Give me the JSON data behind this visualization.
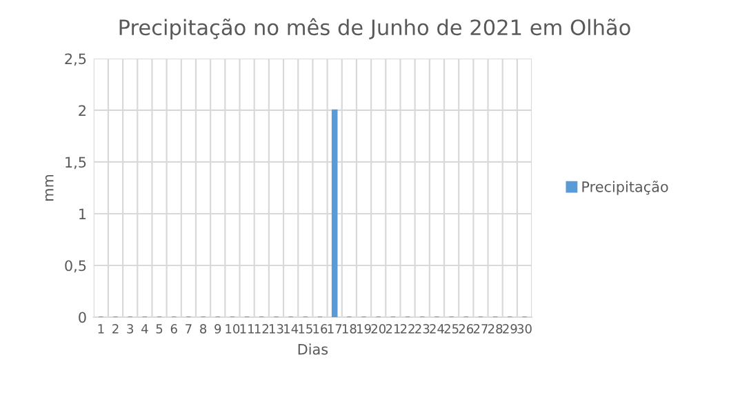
{
  "chart_data": {
    "type": "bar",
    "title": "Precipitação no mês de Junho de 2021 em Olhão",
    "xlabel": "Dias",
    "ylabel": "mm",
    "categories": [
      "1",
      "2",
      "3",
      "4",
      "5",
      "6",
      "7",
      "8",
      "9",
      "10",
      "11",
      "12",
      "13",
      "14",
      "15",
      "16",
      "17",
      "18",
      "19",
      "20",
      "21",
      "22",
      "23",
      "24",
      "25",
      "26",
      "27",
      "28",
      "29",
      "30"
    ],
    "series": [
      {
        "name": "Precipitação",
        "color": "#5b9bd5",
        "values": [
          0,
          0,
          0,
          0,
          0,
          0,
          0,
          0,
          0,
          0,
          0,
          0,
          0,
          0,
          0,
          0,
          2,
          0,
          0,
          0,
          0,
          0,
          0,
          0,
          0,
          0,
          0,
          0,
          0,
          0
        ]
      }
    ],
    "ylim": [
      0,
      2.5
    ],
    "yticks": [
      0,
      {
        "value": 0.5,
        "label": "0,5"
      },
      1,
      {
        "value": 1.5,
        "label": "1,5"
      },
      2,
      {
        "value": 2.5,
        "label": "2,5"
      }
    ],
    "grid": true,
    "legend": "right"
  }
}
